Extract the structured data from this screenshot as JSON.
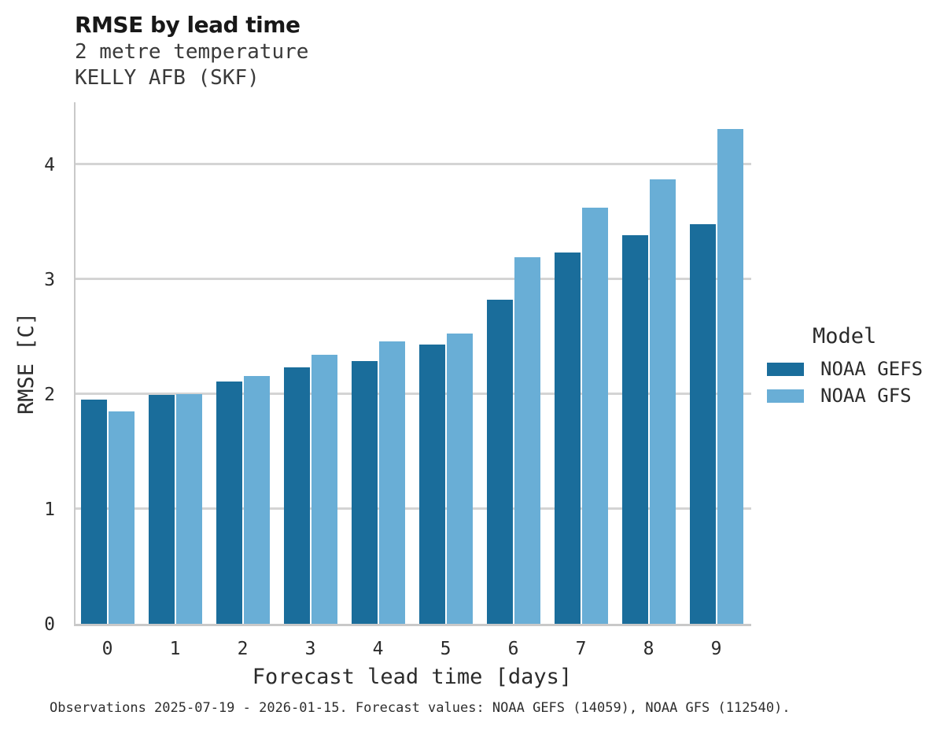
{
  "header": {
    "title": "RMSE by lead time",
    "subtitle_variable": "2 metre temperature",
    "subtitle_station": "KELLY AFB (SKF)"
  },
  "legend": {
    "title": "Model",
    "items": [
      {
        "label": "NOAA GEFS",
        "color": "#1a6d9b"
      },
      {
        "label": "NOAA GFS",
        "color": "#69aed6"
      }
    ]
  },
  "footer": {
    "caption": "Observations 2025-07-19 - 2026-01-15. Forecast values: NOAA GEFS (14059), NOAA GFS (112540)."
  },
  "chart_data": {
    "type": "bar",
    "title": "RMSE by lead time",
    "subtitle": [
      "2 metre temperature",
      "KELLY AFB (SKF)"
    ],
    "xlabel": "Forecast lead time [days]",
    "ylabel": "RMSE [C]",
    "categories": [
      0,
      1,
      2,
      3,
      4,
      5,
      6,
      7,
      8,
      9
    ],
    "series": [
      {
        "name": "NOAA GEFS",
        "color": "#1a6d9b",
        "values": [
          1.95,
          1.99,
          2.11,
          2.23,
          2.29,
          2.43,
          2.82,
          3.23,
          3.38,
          3.48
        ]
      },
      {
        "name": "NOAA GFS",
        "color": "#69aed6",
        "values": [
          1.85,
          2.0,
          2.16,
          2.34,
          2.46,
          2.53,
          3.19,
          3.62,
          3.87,
          4.31
        ]
      }
    ],
    "ylim": [
      0,
      4.54
    ],
    "yticks": [
      0,
      1,
      2,
      3,
      4
    ],
    "grid": "horizontal",
    "legend_title": "Model",
    "legend_position": "right"
  }
}
